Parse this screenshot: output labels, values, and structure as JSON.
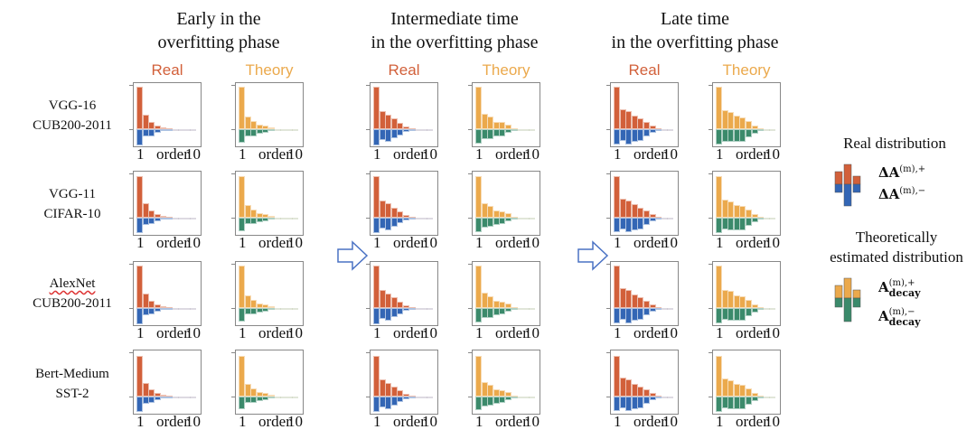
{
  "stages": [
    {
      "title_line1": "Early in the",
      "title_line2": "overfitting phase"
    },
    {
      "title_line1": "Intermediate time",
      "title_line2": "in the overfitting phase"
    },
    {
      "title_line1": "Late time",
      "title_line2": "in the overfitting phase"
    }
  ],
  "subheads": {
    "real": "Real",
    "theory": "Theory"
  },
  "rows": [
    {
      "line1": "VGG-16",
      "line2": "CUB200-2011"
    },
    {
      "line1": "VGG-11",
      "line2": "CIFAR-10"
    },
    {
      "line1": "AlexNet",
      "line2": "CUB200-2011"
    },
    {
      "line1": "Bert-Medium",
      "line2": "SST-2"
    }
  ],
  "axis": {
    "start": "1",
    "label": "order",
    "end": "10"
  },
  "legend": {
    "real_title": "Real distribution",
    "real_pos": "ΔA",
    "real_pos_sup": "(m),+",
    "real_neg": "ΔA",
    "real_neg_sup": "(m),−",
    "theory_title_line1": "Theoretically",
    "theory_title_line2": "estimated distribution",
    "theory_pos": "A",
    "theory_pos_sup": "(m),+",
    "theory_pos_sub": "decay",
    "theory_neg": "A",
    "theory_neg_sup": "(m),−",
    "theory_neg_sub": "decay"
  },
  "colors": {
    "real_pos": "#d2603a",
    "real_neg": "#3366b5",
    "theory_pos": "#eba94c",
    "theory_neg": "#3b8a6b"
  },
  "chart_data": {
    "type": "bar",
    "xlabel": "order",
    "x": [
      1,
      2,
      3,
      4,
      5,
      6,
      7,
      8,
      9,
      10
    ],
    "panels": [
      {
        "stage": 0,
        "kind": "real",
        "pos": [
          1,
          0.34,
          0.17,
          0.09,
          0.05,
          0.02,
          0.01,
          0.01,
          0.005,
          0
        ],
        "neg": [
          -0.38,
          -0.17,
          -0.16,
          -0.09,
          -0.04,
          -0.02,
          -0.01,
          -0.005,
          0,
          0
        ]
      },
      {
        "stage": 0,
        "kind": "theory",
        "pos": [
          1,
          0.3,
          0.2,
          0.1,
          0.09,
          0.05,
          0.01,
          0.01,
          0,
          0
        ],
        "neg": [
          -0.32,
          -0.16,
          -0.16,
          -0.1,
          -0.08,
          -0.04,
          -0.01,
          -0.005,
          0,
          0
        ]
      },
      {
        "stage": 1,
        "kind": "real",
        "pos": [
          1,
          0.42,
          0.34,
          0.25,
          0.15,
          0.07,
          0.03,
          0.01,
          0.005,
          0
        ],
        "neg": [
          -0.38,
          -0.26,
          -0.3,
          -0.22,
          -0.14,
          -0.06,
          -0.02,
          -0.01,
          0,
          0
        ]
      },
      {
        "stage": 1,
        "kind": "theory",
        "pos": [
          1,
          0.36,
          0.29,
          0.18,
          0.16,
          0.1,
          0.03,
          0.01,
          0,
          0
        ],
        "neg": [
          -0.34,
          -0.24,
          -0.23,
          -0.18,
          -0.16,
          -0.09,
          -0.03,
          -0.01,
          0,
          0
        ]
      },
      {
        "stage": 2,
        "kind": "real",
        "pos": [
          1,
          0.47,
          0.42,
          0.32,
          0.25,
          0.18,
          0.09,
          0.02,
          0.01,
          0.005
        ],
        "neg": [
          -0.36,
          -0.28,
          -0.36,
          -0.3,
          -0.28,
          -0.18,
          -0.09,
          -0.04,
          -0.01,
          0
        ]
      },
      {
        "stage": 2,
        "kind": "theory",
        "pos": [
          1,
          0.44,
          0.4,
          0.31,
          0.28,
          0.19,
          0.09,
          0.02,
          0.01,
          0
        ],
        "neg": [
          -0.37,
          -0.29,
          -0.3,
          -0.3,
          -0.3,
          -0.2,
          -0.1,
          -0.03,
          -0.01,
          0
        ]
      }
    ]
  }
}
